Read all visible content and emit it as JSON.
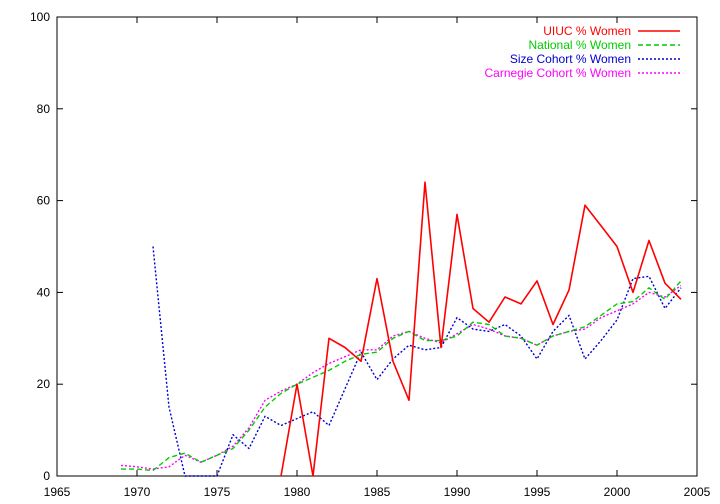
{
  "chart_data": {
    "type": "line",
    "title": "",
    "xlabel": "",
    "ylabel": "",
    "xlim": [
      1965,
      2005
    ],
    "ylim": [
      0,
      100
    ],
    "xticks": [
      "1965",
      "1970",
      "1975",
      "1980",
      "1985",
      "1990",
      "1995",
      "2000",
      "2005"
    ],
    "yticks": [
      "0",
      "20",
      "40",
      "60",
      "80",
      "100"
    ],
    "grid": false,
    "legend": "top-right",
    "series": [
      {
        "name": "UIUC % Women",
        "color": "#ff0000",
        "dash": "solid",
        "x": [
          1979,
          1980,
          1981,
          1982,
          1983,
          1984,
          1985,
          1986,
          1987,
          1988,
          1989,
          1990,
          1991,
          1992,
          1993,
          1994,
          1995,
          1996,
          1997,
          1998,
          1999,
          2000,
          2001,
          2002,
          2003,
          2004
        ],
        "y": [
          0,
          20,
          0,
          30,
          28,
          25,
          43,
          25,
          16.5,
          64,
          28,
          57,
          36.5,
          33.5,
          39,
          37.5,
          42.5,
          33,
          40.5,
          59,
          54.5,
          50,
          40,
          51.3,
          42,
          38.5
        ]
      },
      {
        "name": "National % Women",
        "color": "#00cc00",
        "dash": "dashed",
        "x": [
          1969,
          1970,
          1971,
          1972,
          1973,
          1974,
          1975,
          1976,
          1977,
          1978,
          1979,
          1980,
          1981,
          1982,
          1983,
          1984,
          1985,
          1986,
          1987,
          1988,
          1989,
          1990,
          1991,
          1992,
          1993,
          1994,
          1995,
          1996,
          1997,
          1998,
          1999,
          2000,
          2001,
          2002,
          2003,
          2004
        ],
        "y": [
          1.5,
          1.5,
          1.2,
          4.0,
          5.0,
          3.0,
          4.5,
          6.0,
          10.0,
          15.0,
          18.0,
          20.0,
          21.5,
          23.0,
          25.0,
          26.5,
          27.0,
          30.0,
          31.5,
          29.5,
          29.5,
          30.5,
          33.5,
          33.0,
          30.5,
          30.0,
          28.5,
          30.5,
          31.5,
          32.5,
          35.0,
          37.5,
          38.0,
          41.0,
          38.5,
          42.5
        ]
      },
      {
        "name": "Size Cohort % Women",
        "color": "#0000cc",
        "dash": "dotted",
        "x": [
          1971,
          1972,
          1973,
          1974,
          1975,
          1976,
          1977,
          1978,
          1979,
          1980,
          1981,
          1982,
          1983,
          1984,
          1985,
          1986,
          1987,
          1988,
          1989,
          1990,
          1991,
          1992,
          1993,
          1994,
          1995,
          1996,
          1997,
          1998,
          1999,
          2000,
          2001,
          2002,
          2003,
          2004
        ],
        "y": [
          50,
          15,
          0,
          0,
          0,
          9,
          6,
          13,
          11,
          12.5,
          14,
          11,
          19,
          27,
          21,
          25.5,
          28.5,
          27.5,
          28,
          34.5,
          32,
          31.5,
          33,
          30.5,
          25.5,
          31.5,
          35,
          25.5,
          29.5,
          34,
          43,
          43.5,
          36.5,
          41
        ]
      },
      {
        "name": "Carnegie Cohort % Women",
        "color": "#ff00ff",
        "dash": "dotted",
        "x": [
          1969,
          1970,
          1971,
          1972,
          1973,
          1974,
          1975,
          1976,
          1977,
          1978,
          1979,
          1980,
          1981,
          1982,
          1983,
          1984,
          1985,
          1986,
          1987,
          1988,
          1989,
          1990,
          1991,
          1992,
          1993,
          1994,
          1995,
          1996,
          1997,
          1998,
          1999,
          2000,
          2001,
          2002,
          2003,
          2004
        ],
        "y": [
          2.3,
          2.0,
          1.5,
          2.0,
          4.5,
          3.0,
          4.5,
          6.5,
          10.5,
          16.5,
          18.5,
          20.0,
          22.5,
          24.5,
          26.0,
          27.5,
          27.5,
          30.5,
          31.5,
          30.0,
          29.0,
          31.0,
          33.0,
          32.0,
          30.5,
          30.0,
          28.5,
          30.5,
          31.5,
          32.0,
          34.5,
          36.0,
          37.5,
          40.0,
          39.0,
          41.5
        ]
      }
    ]
  }
}
